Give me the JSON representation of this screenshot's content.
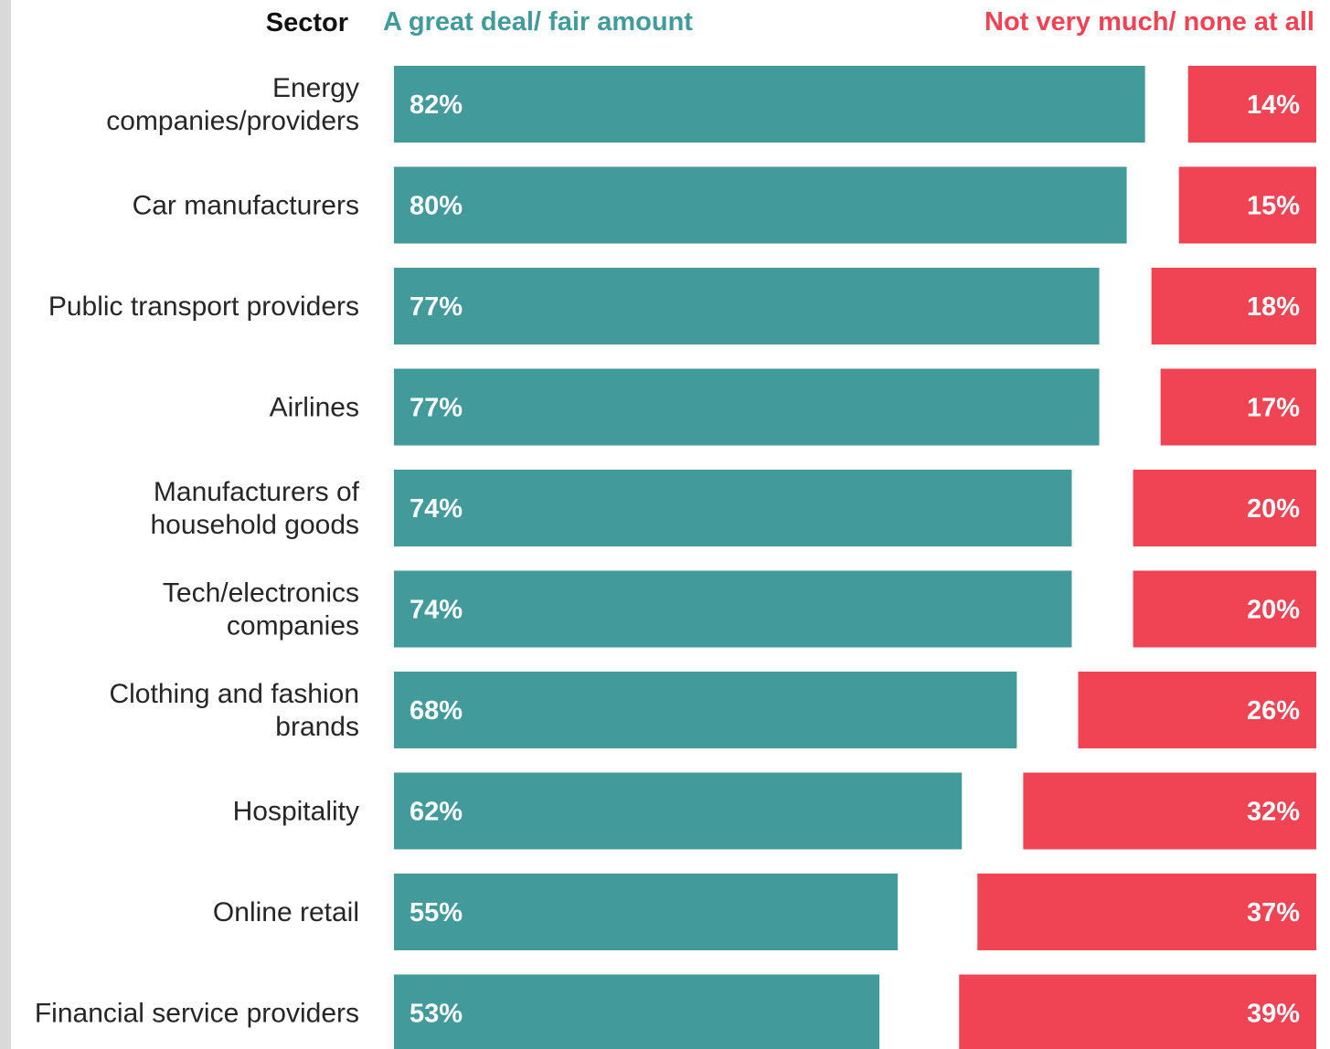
{
  "colors": {
    "positive": "#429a9a",
    "negative": "#f04455",
    "header_text": "#111111"
  },
  "chart_data": {
    "type": "bar",
    "layout": "diverging-horizontal",
    "category_header": "Sector",
    "categories": [
      "Energy companies/providers",
      "Car manufacturers",
      "Public transport providers",
      "Airlines",
      "Manufacturers of household goods",
      "Tech/electronics companies",
      "Clothing and fashion brands",
      "Hospitality",
      "Online retail",
      "Financial service providers"
    ],
    "category_lines": [
      [
        "Energy",
        "companies/providers"
      ],
      [
        "Car manufacturers"
      ],
      [
        "Public transport providers"
      ],
      [
        "Airlines"
      ],
      [
        "Manufacturers of",
        "household goods"
      ],
      [
        "Tech/electronics",
        "companies"
      ],
      [
        "Clothing and fashion",
        "brands"
      ],
      [
        "Hospitality"
      ],
      [
        "Online retail"
      ],
      [
        "Financial service providers"
      ]
    ],
    "series": [
      {
        "name": "A great deal/ fair amount",
        "values": [
          82,
          80,
          77,
          77,
          74,
          74,
          68,
          62,
          55,
          53
        ],
        "labels": [
          "82%",
          "80%",
          "77%",
          "77%",
          "74%",
          "74%",
          "68%",
          "62%",
          "55%",
          "53%"
        ]
      },
      {
        "name": "Not very much/ none at all",
        "values": [
          14,
          15,
          18,
          17,
          20,
          20,
          26,
          32,
          37,
          39
        ],
        "labels": [
          "14%",
          "15%",
          "18%",
          "17%",
          "20%",
          "20%",
          "26%",
          "32%",
          "37%",
          "39%"
        ]
      }
    ],
    "xlim": [
      0,
      100
    ],
    "grid": false
  }
}
